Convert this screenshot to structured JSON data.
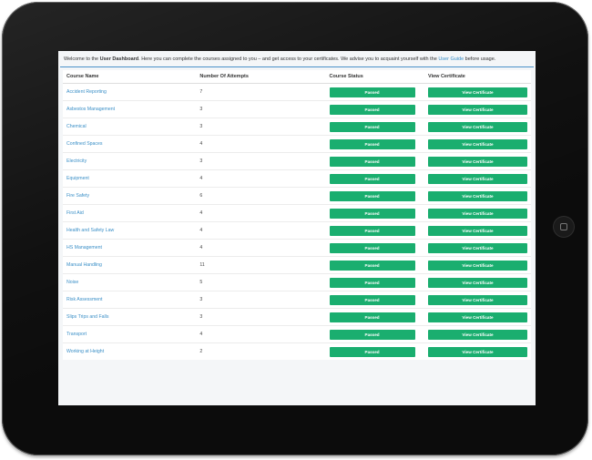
{
  "welcome": {
    "prefix": "Welcome to the ",
    "dashboard_bold": "User Dashboard",
    "middle": ". Here you can complete the courses assigned to you – and get access to your certificates. We advise you to acquaint yourself with the ",
    "guide_link": "User Guide",
    "suffix": " before usage."
  },
  "table": {
    "headers": {
      "course_name": "Course Name",
      "attempts": "Number Of Attempts",
      "status": "Course Status",
      "certificate": "View Certificate"
    },
    "rows": [
      {
        "course": "Accident Reporting",
        "attempts": "7",
        "status": "Passed",
        "action": "View Certificate"
      },
      {
        "course": "Asbestos Management",
        "attempts": "3",
        "status": "Passed",
        "action": "View Certificate"
      },
      {
        "course": "Chemical",
        "attempts": "3",
        "status": "Passed",
        "action": "View Certificate"
      },
      {
        "course": "Confined Spaces",
        "attempts": "4",
        "status": "Passed",
        "action": "View Certificate"
      },
      {
        "course": "Electricity",
        "attempts": "3",
        "status": "Passed",
        "action": "View Certificate"
      },
      {
        "course": "Equipment",
        "attempts": "4",
        "status": "Passed",
        "action": "View Certificate"
      },
      {
        "course": "Fire Safety",
        "attempts": "6",
        "status": "Passed",
        "action": "View Certificate"
      },
      {
        "course": "First Aid",
        "attempts": "4",
        "status": "Passed",
        "action": "View Certificate"
      },
      {
        "course": "Health and Safety Law",
        "attempts": "4",
        "status": "Passed",
        "action": "View Certificate"
      },
      {
        "course": "HS Management",
        "attempts": "4",
        "status": "Passed",
        "action": "View Certificate"
      },
      {
        "course": "Manual Handling",
        "attempts": "11",
        "status": "Passed",
        "action": "View Certificate"
      },
      {
        "course": "Noise",
        "attempts": "5",
        "status": "Passed",
        "action": "View Certificate"
      },
      {
        "course": "Risk Assessment",
        "attempts": "3",
        "status": "Passed",
        "action": "View Certificate"
      },
      {
        "course": "Slips Trips and Falls",
        "attempts": "3",
        "status": "Passed",
        "action": "View Certificate"
      },
      {
        "course": "Transport",
        "attempts": "4",
        "status": "Passed",
        "action": "View Certificate"
      },
      {
        "course": "Working at Height",
        "attempts": "2",
        "status": "Passed",
        "action": "View Certificate"
      }
    ]
  },
  "colors": {
    "accent_link": "#3a8fc7",
    "passed_green": "#1aae6f",
    "tablet_frame": "#0c0c0c"
  }
}
